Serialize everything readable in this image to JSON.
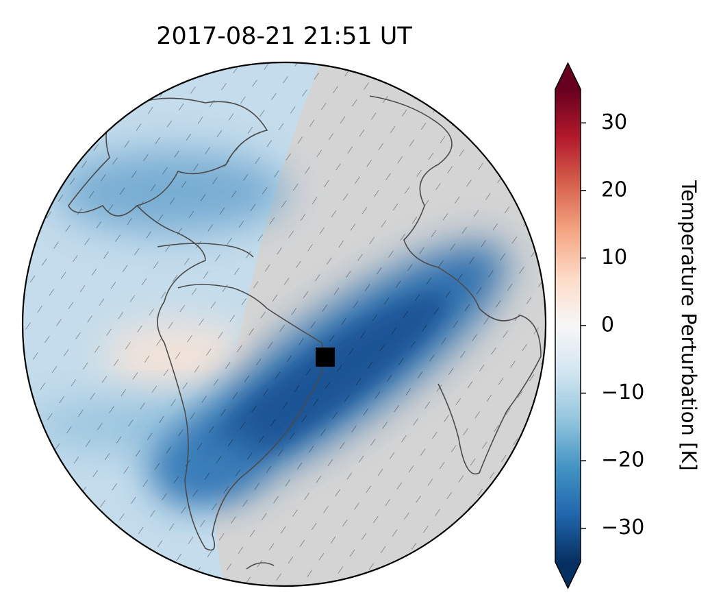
{
  "chart_data": {
    "type": "map",
    "title": "2017-08-21  21:51 UT",
    "colorbar_label": "Temperature Perturbation [K]",
    "clim": [
      -35,
      35
    ],
    "cticks": [
      {
        "value": -30,
        "label": "−30"
      },
      {
        "value": -20,
        "label": "−20"
      },
      {
        "value": -10,
        "label": "−10"
      },
      0,
      10,
      20,
      30
    ],
    "colormap": [
      "#053061",
      "#2166ac",
      "#4393c3",
      "#92c5de",
      "#d1e5f0",
      "#f7f7f7",
      "#fddbc7",
      "#f4a582",
      "#d6604d",
      "#b2182b",
      "#67001f"
    ]
  }
}
